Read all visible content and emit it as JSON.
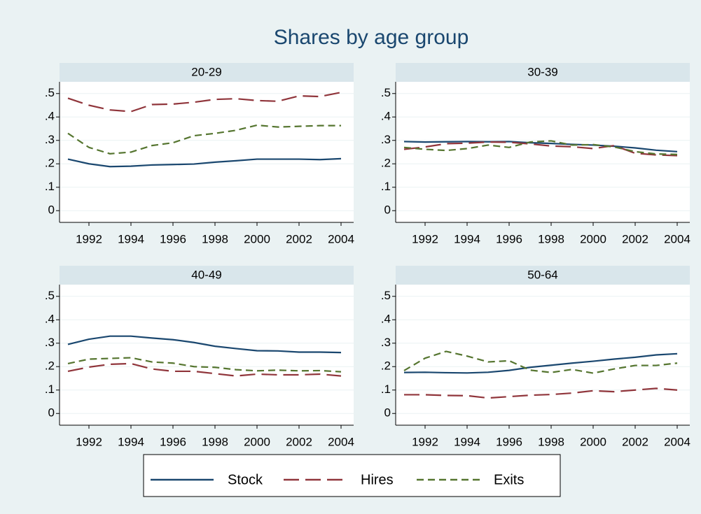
{
  "title": "Shares by age group",
  "chart_data": [
    {
      "type": "line",
      "title": "20-29",
      "x": [
        1991,
        1992,
        1993,
        1994,
        1995,
        1996,
        1997,
        1998,
        1999,
        2000,
        2001,
        2002,
        2003,
        2004
      ],
      "xlim": [
        1990.6,
        2004.6
      ],
      "xticks": [
        1992,
        1994,
        1996,
        1998,
        2000,
        2002,
        2004
      ],
      "ylim": [
        -0.05,
        0.55
      ],
      "yticks": [
        0,
        {
          "value": 0.1,
          "label": ".1"
        },
        {
          "value": 0.2,
          "label": ".2"
        },
        {
          "value": 0.3,
          "label": ".3"
        },
        {
          "value": 0.4,
          "label": ".4"
        },
        {
          "value": 0.5,
          "label": ".5"
        }
      ],
      "grid": true,
      "series": [
        {
          "name": "Stock",
          "color": "#1a476f",
          "values": [
            0.22,
            0.2,
            0.188,
            0.19,
            0.195,
            0.197,
            0.199,
            0.207,
            0.213,
            0.22,
            0.22,
            0.22,
            0.218,
            0.222
          ]
        },
        {
          "name": "Hires",
          "color": "#90353b",
          "values": [
            0.48,
            0.45,
            0.43,
            0.423,
            0.453,
            0.455,
            0.463,
            0.475,
            0.478,
            0.47,
            0.467,
            0.49,
            0.487,
            0.505
          ]
        },
        {
          "name": "Exits",
          "color": "#55752f",
          "values": [
            0.33,
            0.27,
            0.243,
            0.25,
            0.278,
            0.29,
            0.32,
            0.33,
            0.343,
            0.365,
            0.357,
            0.36,
            0.363,
            0.363
          ]
        }
      ]
    },
    {
      "type": "line",
      "title": "30-39",
      "x": [
        1991,
        1992,
        1993,
        1994,
        1995,
        1996,
        1997,
        1998,
        1999,
        2000,
        2001,
        2002,
        2003,
        2004
      ],
      "xlim": [
        1990.6,
        2004.6
      ],
      "xticks": [
        1992,
        1994,
        1996,
        1998,
        2000,
        2002,
        2004
      ],
      "ylim": [
        -0.05,
        0.55
      ],
      "yticks": [
        0,
        {
          "value": 0.1,
          "label": ".1"
        },
        {
          "value": 0.2,
          "label": ".2"
        },
        {
          "value": 0.3,
          "label": ".3"
        },
        {
          "value": 0.4,
          "label": ".4"
        },
        {
          "value": 0.5,
          "label": ".5"
        }
      ],
      "grid": true,
      "series": [
        {
          "name": "Stock",
          "color": "#1a476f",
          "values": [
            0.295,
            0.293,
            0.294,
            0.295,
            0.294,
            0.295,
            0.29,
            0.287,
            0.283,
            0.28,
            0.275,
            0.268,
            0.258,
            0.252
          ]
        },
        {
          "name": "Hires",
          "color": "#90353b",
          "values": [
            0.262,
            0.272,
            0.286,
            0.288,
            0.293,
            0.292,
            0.285,
            0.276,
            0.273,
            0.265,
            0.278,
            0.245,
            0.238,
            0.235
          ]
        },
        {
          "name": "Exits",
          "color": "#55752f",
          "values": [
            0.27,
            0.262,
            0.257,
            0.265,
            0.28,
            0.27,
            0.293,
            0.298,
            0.28,
            0.282,
            0.272,
            0.252,
            0.242,
            0.24
          ]
        }
      ]
    },
    {
      "type": "line",
      "title": "40-49",
      "x": [
        1991,
        1992,
        1993,
        1994,
        1995,
        1996,
        1997,
        1998,
        1999,
        2000,
        2001,
        2002,
        2003,
        2004
      ],
      "xlim": [
        1990.6,
        2004.6
      ],
      "xticks": [
        1992,
        1994,
        1996,
        1998,
        2000,
        2002,
        2004
      ],
      "ylim": [
        -0.05,
        0.55
      ],
      "yticks": [
        0,
        {
          "value": 0.1,
          "label": ".1"
        },
        {
          "value": 0.2,
          "label": ".2"
        },
        {
          "value": 0.3,
          "label": ".3"
        },
        {
          "value": 0.4,
          "label": ".4"
        },
        {
          "value": 0.5,
          "label": ".5"
        }
      ],
      "grid": true,
      "series": [
        {
          "name": "Stock",
          "color": "#1a476f",
          "values": [
            0.295,
            0.317,
            0.33,
            0.33,
            0.322,
            0.315,
            0.303,
            0.287,
            0.277,
            0.268,
            0.267,
            0.262,
            0.262,
            0.26
          ]
        },
        {
          "name": "Hires",
          "color": "#90353b",
          "values": [
            0.18,
            0.198,
            0.21,
            0.213,
            0.19,
            0.18,
            0.18,
            0.17,
            0.16,
            0.168,
            0.165,
            0.165,
            0.168,
            0.16
          ]
        },
        {
          "name": "Exits",
          "color": "#55752f",
          "values": [
            0.213,
            0.232,
            0.235,
            0.238,
            0.22,
            0.215,
            0.2,
            0.197,
            0.187,
            0.182,
            0.185,
            0.182,
            0.183,
            0.178
          ]
        }
      ]
    },
    {
      "type": "line",
      "title": "50-64",
      "x": [
        1991,
        1992,
        1993,
        1994,
        1995,
        1996,
        1997,
        1998,
        1999,
        2000,
        2001,
        2002,
        2003,
        2004
      ],
      "xlim": [
        1990.6,
        2004.6
      ],
      "xticks": [
        1992,
        1994,
        1996,
        1998,
        2000,
        2002,
        2004
      ],
      "ylim": [
        -0.05,
        0.55
      ],
      "yticks": [
        0,
        {
          "value": 0.1,
          "label": ".1"
        },
        {
          "value": 0.2,
          "label": ".2"
        },
        {
          "value": 0.3,
          "label": ".3"
        },
        {
          "value": 0.4,
          "label": ".4"
        },
        {
          "value": 0.5,
          "label": ".5"
        }
      ],
      "grid": true,
      "series": [
        {
          "name": "Stock",
          "color": "#1a476f",
          "values": [
            0.175,
            0.176,
            0.174,
            0.173,
            0.176,
            0.184,
            0.197,
            0.206,
            0.215,
            0.223,
            0.232,
            0.24,
            0.25,
            0.255
          ]
        },
        {
          "name": "Hires",
          "color": "#90353b",
          "values": [
            0.08,
            0.08,
            0.077,
            0.076,
            0.066,
            0.072,
            0.078,
            0.081,
            0.087,
            0.097,
            0.093,
            0.1,
            0.107,
            0.1
          ]
        },
        {
          "name": "Exits",
          "color": "#55752f",
          "values": [
            0.183,
            0.236,
            0.265,
            0.245,
            0.22,
            0.225,
            0.185,
            0.175,
            0.188,
            0.172,
            0.19,
            0.205,
            0.205,
            0.215
          ]
        }
      ]
    }
  ]
}
